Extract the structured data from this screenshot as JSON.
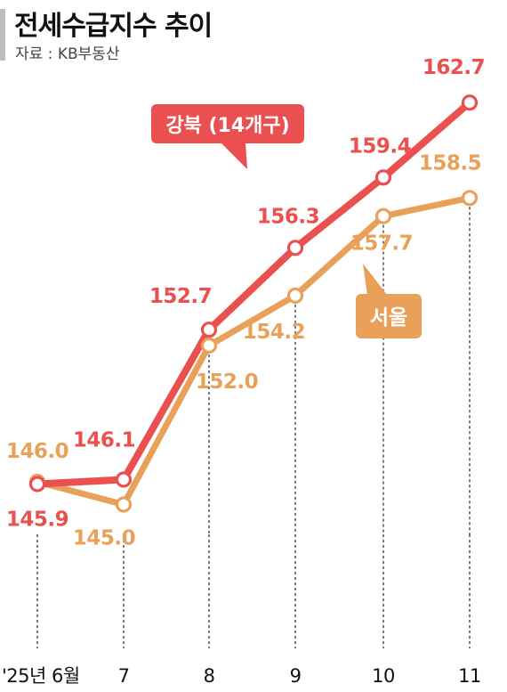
{
  "header": {
    "title": "전세수급지수 추이",
    "source": "자료 : KB부동산"
  },
  "chart_data": {
    "type": "line",
    "title": "전세수급지수 추이",
    "categories": [
      "'25년 6월",
      "7",
      "8",
      "9",
      "10",
      "11"
    ],
    "ylim": [
      144,
      164
    ],
    "grid": "vertical-dotted",
    "legend": "inline-callouts",
    "series": [
      {
        "name": "강북 (14개구)",
        "color": "#e9504f",
        "values": [
          145.9,
          146.1,
          152.7,
          156.3,
          159.4,
          162.7
        ],
        "value_labels": [
          "145.9",
          "146.1",
          "152.7",
          "156.3",
          "159.4",
          "162.7"
        ]
      },
      {
        "name": "서울",
        "color": "#e9a15a",
        "values": [
          146.0,
          145.0,
          152.0,
          154.2,
          157.7,
          158.5
        ],
        "value_labels": [
          "146.0",
          "145.0",
          "152.0",
          "154.2",
          "157.7",
          "158.5"
        ]
      }
    ]
  }
}
